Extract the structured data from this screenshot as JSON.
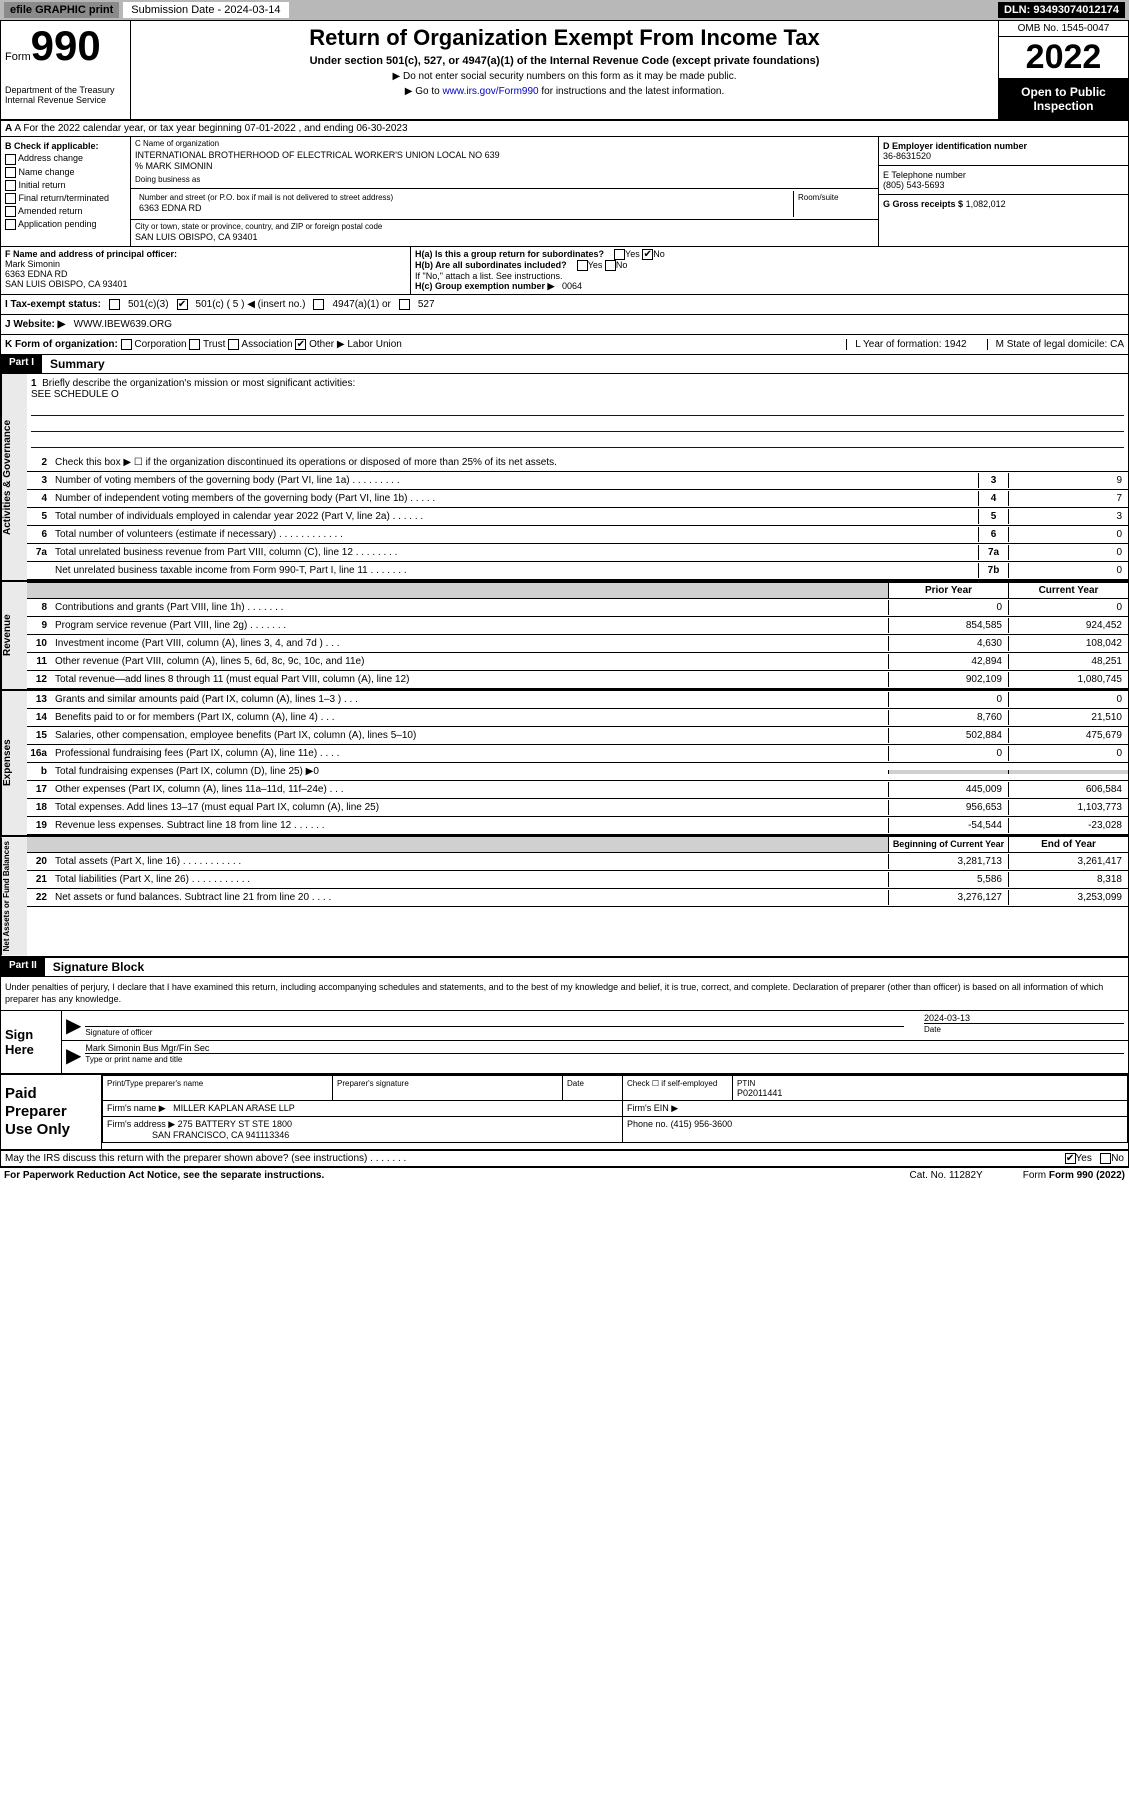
{
  "topbar": {
    "efile": "efile GRAPHIC print",
    "subdate_label": "Submission Date - 2024-03-14",
    "dln": "DLN: 93493074012174"
  },
  "header": {
    "form_word": "Form",
    "form_num": "990",
    "dept": "Department of the Treasury\nInternal Revenue Service",
    "title": "Return of Organization Exempt From Income Tax",
    "sub1": "Under section 501(c), 527, or 4947(a)(1) of the Internal Revenue Code (except private foundations)",
    "sub2": "▶ Do not enter social security numbers on this form as it may be made public.",
    "sub3_pre": "▶ Go to ",
    "sub3_link": "www.irs.gov/Form990",
    "sub3_post": " for instructions and the latest information.",
    "omb": "OMB No. 1545-0047",
    "year": "2022",
    "open": "Open to Public Inspection"
  },
  "rowA": {
    "text": "A For the 2022 calendar year, or tax year beginning 07-01-2022   , and ending 06-30-2023"
  },
  "boxB": {
    "label": "B Check if applicable:",
    "items": [
      "Address change",
      "Name change",
      "Initial return",
      "Final return/terminated",
      "Amended return",
      "Application pending"
    ]
  },
  "boxC": {
    "name_label": "C Name of organization",
    "name": "INTERNATIONAL BROTHERHOOD OF ELECTRICAL WORKER'S UNION LOCAL NO 639",
    "care": "% MARK SIMONIN",
    "dba_label": "Doing business as",
    "addr_label": "Number and street (or P.O. box if mail is not delivered to street address)",
    "room_label": "Room/suite",
    "addr": "6363 EDNA RD",
    "city_label": "City or town, state or province, country, and ZIP or foreign postal code",
    "city": "SAN LUIS OBISPO, CA  93401"
  },
  "boxD": {
    "label": "D Employer identification number",
    "val": "36-8631520"
  },
  "boxE": {
    "label": "E Telephone number",
    "val": "(805) 543-5693"
  },
  "boxG": {
    "label": "G Gross receipts $",
    "val": "1,082,012"
  },
  "rowF": {
    "label": "F Name and address of principal officer:",
    "name": "Mark Simonin",
    "addr": "6363 EDNA RD",
    "city": "SAN LUIS OBISPO, CA  93401"
  },
  "rowH": {
    "ha": "H(a)  Is this a group return for subordinates?",
    "ha_yes": "Yes",
    "ha_no": "No",
    "hb": "H(b)  Are all subordinates included?",
    "hb_yes": "Yes",
    "hb_no": "No",
    "hb_note": "If \"No,\" attach a list. See instructions.",
    "hc": "H(c)  Group exemption number ▶",
    "hc_val": "0064"
  },
  "rowI": {
    "label": "I   Tax-exempt status:",
    "o1": "501(c)(3)",
    "o2": "501(c) ( 5 ) ◀ (insert no.)",
    "o3": "4947(a)(1) or",
    "o4": "527"
  },
  "rowJ": {
    "label": "J   Website: ▶",
    "val": "WWW.IBEW639.ORG"
  },
  "rowK": {
    "label": "K Form of organization:",
    "opts": [
      "Corporation",
      "Trust",
      "Association",
      "Other ▶"
    ],
    "other_val": "Labor Union",
    "L": "L Year of formation: 1942",
    "M": "M State of legal domicile: CA"
  },
  "part1": {
    "num": "Part I",
    "title": "Summary"
  },
  "mission": {
    "n": "1",
    "label": "Briefly describe the organization's mission or most significant activities:",
    "val": "SEE SCHEDULE O"
  },
  "gov_lines": [
    {
      "n": "2",
      "t": "Check this box ▶ ☐  if the organization discontinued its operations or disposed of more than 25% of its net assets.",
      "single": true
    },
    {
      "n": "3",
      "t": "Number of voting members of the governing body (Part VI, line 1a)  .    .    .    .    .    .    .    .    .",
      "bn": "3",
      "v": "9"
    },
    {
      "n": "4",
      "t": "Number of independent voting members of the governing body (Part VI, line 1b)  .    .    .    .    .",
      "bn": "4",
      "v": "7"
    },
    {
      "n": "5",
      "t": "Total number of individuals employed in calendar year 2022 (Part V, line 2a)  .    .    .    .    .    .",
      "bn": "5",
      "v": "3"
    },
    {
      "n": "6",
      "t": "Total number of volunteers (estimate if necessary)  .    .    .    .    .    .    .    .    .    .    .    .",
      "bn": "6",
      "v": "0"
    },
    {
      "n": "7a",
      "t": "Total unrelated business revenue from Part VIII, column (C), line 12  .    .    .    .    .    .    .    .",
      "bn": "7a",
      "v": "0"
    },
    {
      "n": "",
      "t": "Net unrelated business taxable income from Form 990-T, Part I, line 11  .    .    .    .    .    .    .",
      "bn": "7b",
      "v": "0"
    }
  ],
  "col_hdrs": {
    "prior": "Prior Year",
    "current": "Current Year"
  },
  "rev_lines": [
    {
      "n": "8",
      "t": "Contributions and grants (Part VIII, line 1h)  .    .    .    .    .    .    .",
      "p": "0",
      "c": "0"
    },
    {
      "n": "9",
      "t": "Program service revenue (Part VIII, line 2g)  .    .    .    .    .    .    .",
      "p": "854,585",
      "c": "924,452"
    },
    {
      "n": "10",
      "t": "Investment income (Part VIII, column (A), lines 3, 4, and 7d )  .    .    .",
      "p": "4,630",
      "c": "108,042"
    },
    {
      "n": "11",
      "t": "Other revenue (Part VIII, column (A), lines 5, 6d, 8c, 9c, 10c, and 11e)",
      "p": "42,894",
      "c": "48,251"
    },
    {
      "n": "12",
      "t": "Total revenue—add lines 8 through 11 (must equal Part VIII, column (A), line 12)",
      "p": "902,109",
      "c": "1,080,745"
    }
  ],
  "exp_lines": [
    {
      "n": "13",
      "t": "Grants and similar amounts paid (Part IX, column (A), lines 1–3 )  .    .    .",
      "p": "0",
      "c": "0"
    },
    {
      "n": "14",
      "t": "Benefits paid to or for members (Part IX, column (A), line 4)  .    .    .",
      "p": "8,760",
      "c": "21,510"
    },
    {
      "n": "15",
      "t": "Salaries, other compensation, employee benefits (Part IX, column (A), lines 5–10)",
      "p": "502,884",
      "c": "475,679"
    },
    {
      "n": "16a",
      "t": "Professional fundraising fees (Part IX, column (A), line 11e)  .    .    .    .",
      "p": "0",
      "c": "0"
    },
    {
      "n": "b",
      "t": "Total fundraising expenses (Part IX, column (D), line 25) ▶0",
      "grey": true
    },
    {
      "n": "17",
      "t": "Other expenses (Part IX, column (A), lines 11a–11d, 11f–24e)  .    .    .",
      "p": "445,009",
      "c": "606,584"
    },
    {
      "n": "18",
      "t": "Total expenses. Add lines 13–17 (must equal Part IX, column (A), line 25)",
      "p": "956,653",
      "c": "1,103,773"
    },
    {
      "n": "19",
      "t": "Revenue less expenses. Subtract line 18 from line 12  .    .    .    .    .    .",
      "p": "-54,544",
      "c": "-23,028"
    }
  ],
  "na_hdrs": {
    "beg": "Beginning of Current Year",
    "end": "End of Year"
  },
  "na_lines": [
    {
      "n": "20",
      "t": "Total assets (Part X, line 16)  .    .    .    .    .    .    .    .    .    .    .",
      "p": "3,281,713",
      "c": "3,261,417"
    },
    {
      "n": "21",
      "t": "Total liabilities (Part X, line 26)  .    .    .    .    .    .    .    .    .    .    .",
      "p": "5,586",
      "c": "8,318"
    },
    {
      "n": "22",
      "t": "Net assets or fund balances. Subtract line 21 from line 20  .    .    .    .",
      "p": "3,276,127",
      "c": "3,253,099"
    }
  ],
  "part2": {
    "num": "Part II",
    "title": "Signature Block"
  },
  "sig_decl": "Under penalties of perjury, I declare that I have examined this return, including accompanying schedules and statements, and to the best of my knowledge and belief, it is true, correct, and complete. Declaration of preparer (other than officer) is based on all information of which preparer has any knowledge.",
  "sign": {
    "label": "Sign Here",
    "sig_of": "Signature of officer",
    "date": "2024-03-13",
    "date_label": "Date",
    "name": "Mark Simonin  Bus Mgr/Fin Sec",
    "name_label": "Type or print name and title"
  },
  "prep": {
    "label": "Paid Preparer Use Only",
    "h1": "Print/Type preparer's name",
    "h2": "Preparer's signature",
    "h3": "Date",
    "h4_a": "Check ☐ if self-employed",
    "h4_b": "PTIN",
    "ptin": "P02011441",
    "firm_label": "Firm's name    ▶",
    "firm": "MILLER KAPLAN ARASE LLP",
    "ein_label": "Firm's EIN ▶",
    "addr_label": "Firm's address ▶",
    "addr": "275 BATTERY ST STE 1800",
    "city": "SAN FRANCISCO, CA  941113346",
    "phone_label": "Phone no.",
    "phone": "(415) 956-3600"
  },
  "may": {
    "text": "May the IRS discuss this return with the preparer shown above? (see instructions)  .    .    .    .    .    .    .",
    "yes": "Yes",
    "no": "No"
  },
  "footer": {
    "pra": "For Paperwork Reduction Act Notice, see the separate instructions.",
    "cat": "Cat. No. 11282Y",
    "form": "Form 990 (2022)"
  },
  "vtabs": {
    "gov": "Activities & Governance",
    "rev": "Revenue",
    "exp": "Expenses",
    "na": "Net Assets or Fund Balances"
  }
}
